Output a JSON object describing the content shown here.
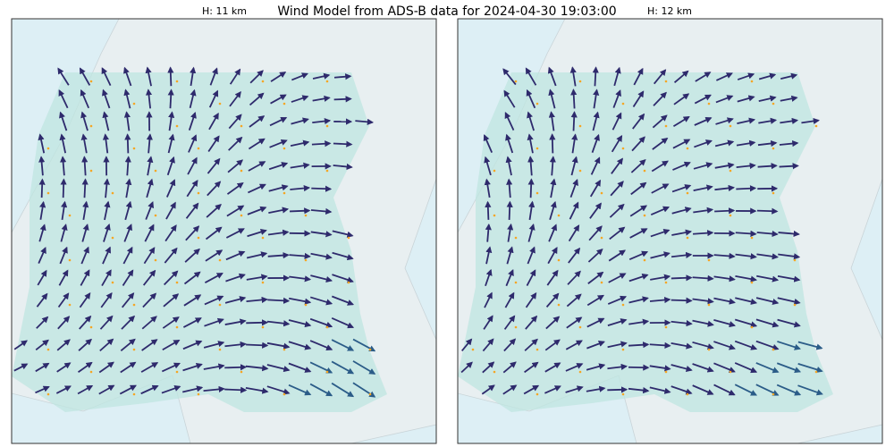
{
  "title": "Wind Model from ADS-B data for 2024-04-30 19:03:00",
  "panels": [
    {
      "label": "H: 11 km"
    },
    {
      "label": "H: 12 km"
    }
  ]
}
